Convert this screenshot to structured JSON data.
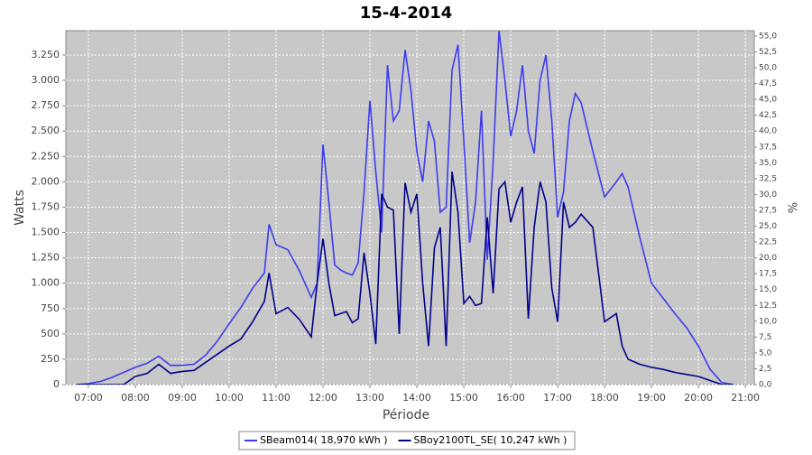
{
  "chart_data": {
    "type": "line",
    "title": "15-4-2014",
    "x_label": "Période",
    "y_label": "Watts",
    "y2_label": "%",
    "x": [
      6.75,
      7,
      7.25,
      7.5,
      7.75,
      8,
      8.25,
      8.5,
      8.75,
      9,
      9.25,
      9.5,
      9.75,
      10,
      10.25,
      10.5,
      10.75,
      10.85,
      11,
      11.25,
      11.5,
      11.75,
      11.875,
      12,
      12.125,
      12.25,
      12.375,
      12.5,
      12.625,
      12.75,
      12.875,
      13,
      13.125,
      13.25,
      13.375,
      13.5,
      13.625,
      13.75,
      13.875,
      14,
      14.125,
      14.25,
      14.375,
      14.5,
      14.625,
      14.75,
      14.875,
      15,
      15.125,
      15.25,
      15.375,
      15.5,
      15.625,
      15.75,
      15.875,
      16,
      16.125,
      16.25,
      16.375,
      16.5,
      16.625,
      16.75,
      16.875,
      17,
      17.125,
      17.25,
      17.375,
      17.5,
      17.75,
      18,
      18.25,
      18.375,
      18.5,
      18.75,
      19,
      19.25,
      19.5,
      19.75,
      20,
      20.25,
      20.5,
      20.75
    ],
    "series": [
      {
        "name": "SBeam014( 18,970 kWh )",
        "color": "#3c3cf0",
        "values": [
          0,
          10,
          30,
          70,
          120,
          170,
          210,
          280,
          190,
          190,
          200,
          290,
          430,
          600,
          760,
          950,
          1100,
          1580,
          1380,
          1330,
          1120,
          860,
          1000,
          2370,
          1800,
          1180,
          1130,
          1100,
          1080,
          1200,
          1900,
          2800,
          2100,
          1500,
          3150,
          2600,
          2700,
          3300,
          2900,
          2300,
          2000,
          2600,
          2400,
          1700,
          1750,
          3100,
          3350,
          2400,
          1400,
          1800,
          2700,
          1230,
          2200,
          3490,
          3000,
          2450,
          2700,
          3150,
          2500,
          2280,
          3000,
          3250,
          2600,
          1650,
          1900,
          2600,
          2870,
          2780,
          2300,
          1850,
          2000,
          2080,
          1950,
          1450,
          1000,
          850,
          700,
          560,
          380,
          150,
          20,
          0
        ]
      },
      {
        "name": "SBoy2100TL_SE( 10,247 kWh )",
        "color": "#00008c",
        "values": [
          0,
          0,
          0,
          0,
          0,
          80,
          110,
          200,
          110,
          130,
          140,
          220,
          300,
          380,
          450,
          620,
          820,
          1100,
          700,
          760,
          640,
          470,
          1000,
          1440,
          1000,
          680,
          700,
          720,
          610,
          650,
          1300,
          900,
          400,
          1880,
          1750,
          1720,
          500,
          1990,
          1700,
          1880,
          1000,
          380,
          1350,
          1550,
          380,
          2100,
          1700,
          800,
          870,
          780,
          800,
          1650,
          900,
          1930,
          2000,
          1600,
          1800,
          1950,
          650,
          1550,
          2000,
          1800,
          950,
          620,
          1800,
          1550,
          1600,
          1680,
          1550,
          620,
          700,
          380,
          250,
          200,
          170,
          150,
          120,
          100,
          80,
          40,
          0,
          0
        ]
      }
    ],
    "xlim": [
      6.52,
      21.19
    ],
    "xticks": [
      {
        "value": 7,
        "label": "07:00"
      },
      {
        "value": 8,
        "label": "08:00"
      },
      {
        "value": 9,
        "label": "09:00"
      },
      {
        "value": 10,
        "label": "10:00"
      },
      {
        "value": 11,
        "label": "11:00"
      },
      {
        "value": 12,
        "label": "12:00"
      },
      {
        "value": 13,
        "label": "13:00"
      },
      {
        "value": 14,
        "label": "14:00"
      },
      {
        "value": 15,
        "label": "15:00"
      },
      {
        "value": 16,
        "label": "16:00"
      },
      {
        "value": 17,
        "label": "17:00"
      },
      {
        "value": 18,
        "label": "18:00"
      },
      {
        "value": 19,
        "label": "19:00"
      },
      {
        "value": 20,
        "label": "20:00"
      },
      {
        "value": 21,
        "label": "21:00"
      }
    ],
    "ylim": [
      0,
      3490
    ],
    "yticks": [
      0,
      250,
      500,
      750,
      {
        "value": 1000,
        "label": "1.000"
      },
      {
        "value": 1250,
        "label": "1.250"
      },
      {
        "value": 1500,
        "label": "1.500"
      },
      {
        "value": 1750,
        "label": "1.750"
      },
      {
        "value": 2000,
        "label": "2.000"
      },
      {
        "value": 2250,
        "label": "2.250"
      },
      {
        "value": 2500,
        "label": "2.500"
      },
      {
        "value": 2750,
        "label": "2.750"
      },
      {
        "value": 3000,
        "label": "3.000"
      },
      {
        "value": 3250,
        "label": "3.250"
      }
    ],
    "y2lim": [
      0,
      55.85
    ],
    "y2ticks": [
      {
        "value": 0,
        "label": "0,0"
      },
      {
        "value": 2.5,
        "label": "2,5"
      },
      {
        "value": 5,
        "label": "5,0"
      },
      {
        "value": 7.5,
        "label": "7,5"
      },
      {
        "value": 10,
        "label": "10,0"
      },
      {
        "value": 12.5,
        "label": "12,5"
      },
      {
        "value": 15,
        "label": "15,0"
      },
      {
        "value": 17.5,
        "label": "17,5"
      },
      {
        "value": 20,
        "label": "20,0"
      },
      {
        "value": 22.5,
        "label": "22,5"
      },
      {
        "value": 25,
        "label": "25,0"
      },
      {
        "value": 27.5,
        "label": "27,5"
      },
      {
        "value": 30,
        "label": "30,0"
      },
      {
        "value": 32.5,
        "label": "32,5"
      },
      {
        "value": 35,
        "label": "35,0"
      },
      {
        "value": 37.5,
        "label": "37,5"
      },
      {
        "value": 40,
        "label": "40,0"
      },
      {
        "value": 42.5,
        "label": "42,5"
      },
      {
        "value": 45,
        "label": "45,0"
      },
      {
        "value": 47.5,
        "label": "47,5"
      },
      {
        "value": 50,
        "label": "50,0"
      },
      {
        "value": 52.5,
        "label": "52,5"
      },
      {
        "value": 55,
        "label": "55,0"
      }
    ],
    "grid": true,
    "plot_background": "#c8c8c8",
    "legend": "bottom"
  }
}
